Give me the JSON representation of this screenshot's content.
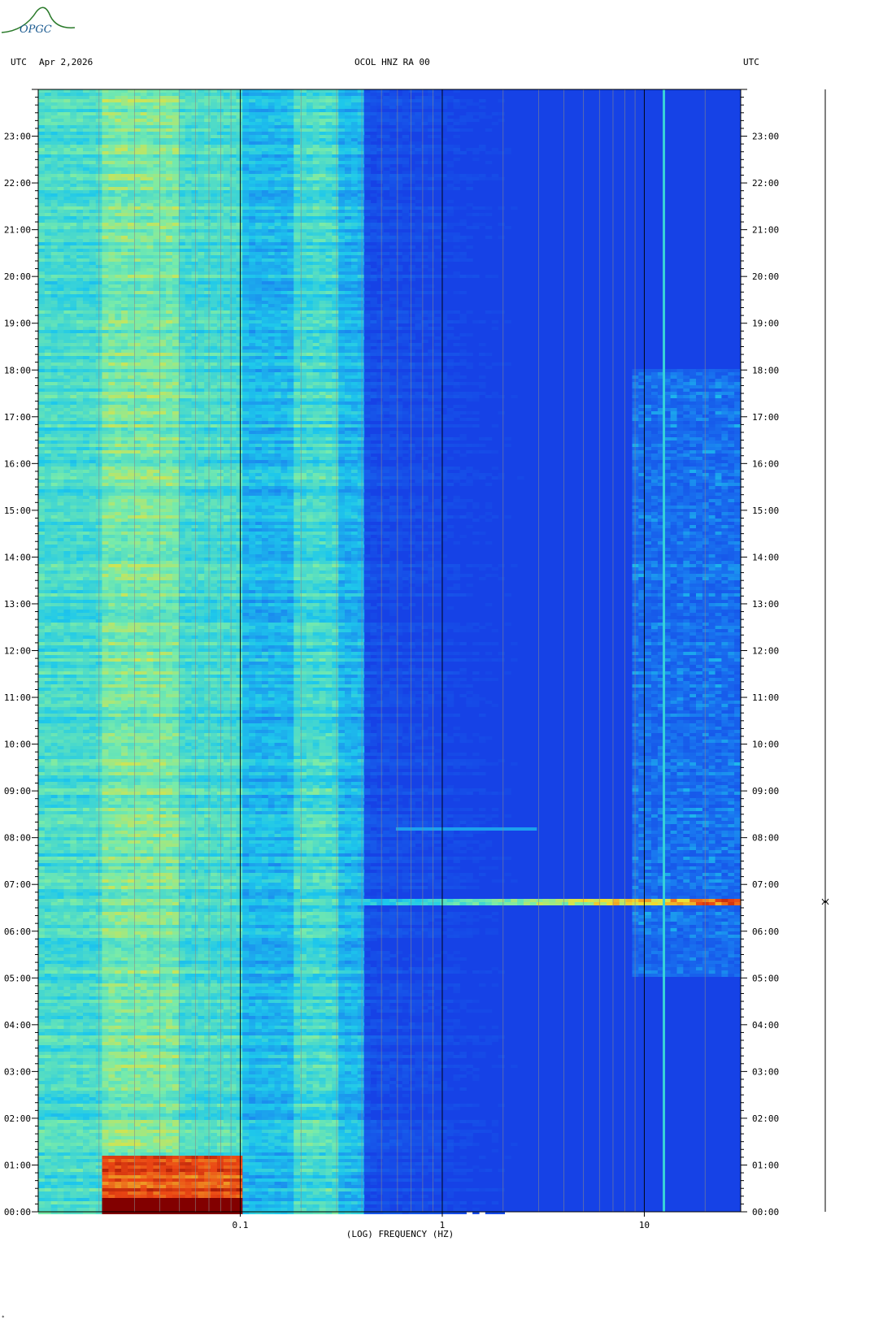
{
  "logo": {
    "text": "OPGC",
    "icon": "ovpf-opgc-logo"
  },
  "header": {
    "left_utc": "UTC",
    "date": "Apr 2,2026",
    "station": "OCOL HNZ RA 00",
    "right_utc": "UTC"
  },
  "corner_mark": "*",
  "colors": {
    "background_low": "#1530e8",
    "mid": "#1ea8f0",
    "cyan": "#20e0e0",
    "yellow": "#f0e030",
    "red": "#e02010",
    "dark_red": "#8a0000"
  },
  "chart_data": {
    "type": "heatmap",
    "title": "OCOL HNZ RA 00",
    "xlabel": "(LOG) FREQUENCY (HZ)",
    "ylabel": "UTC",
    "x_scale": "log",
    "xlim": [
      0.01,
      30
    ],
    "x_ticks": [
      {
        "value": 0.1,
        "label": "0.1"
      },
      {
        "value": 1,
        "label": "1"
      },
      {
        "value": 10,
        "label": "10"
      }
    ],
    "ylim": [
      "00:00",
      "24:00"
    ],
    "y_ticks": [
      "00:00",
      "01:00",
      "02:00",
      "03:00",
      "04:00",
      "05:00",
      "06:00",
      "07:00",
      "08:00",
      "09:00",
      "10:00",
      "11:00",
      "12:00",
      "13:00",
      "14:00",
      "15:00",
      "16:00",
      "17:00",
      "18:00",
      "19:00",
      "20:00",
      "21:00",
      "22:00",
      "23:00"
    ],
    "grid": true,
    "features": [
      {
        "kind": "microseism_band",
        "freq_hz": [
          0.01,
          0.1
        ],
        "level": "high"
      },
      {
        "kind": "secondary_microseism",
        "freq_hz": [
          0.18,
          0.3
        ],
        "level": "medium"
      },
      {
        "kind": "broadband_event",
        "time": "06:37",
        "freq_hz": [
          0.4,
          30
        ],
        "level": "high"
      },
      {
        "kind": "event",
        "time": "08:10",
        "freq_hz": [
          0.6,
          3
        ],
        "level": "medium"
      },
      {
        "kind": "cultural_noise",
        "time": [
          "05:00",
          "18:00"
        ],
        "freq_hz": [
          10,
          30
        ],
        "level": "high"
      },
      {
        "kind": "spectral_line",
        "freq_hz": 12.5,
        "time": [
          "00:00",
          "24:00"
        ],
        "level": "medium"
      }
    ]
  }
}
